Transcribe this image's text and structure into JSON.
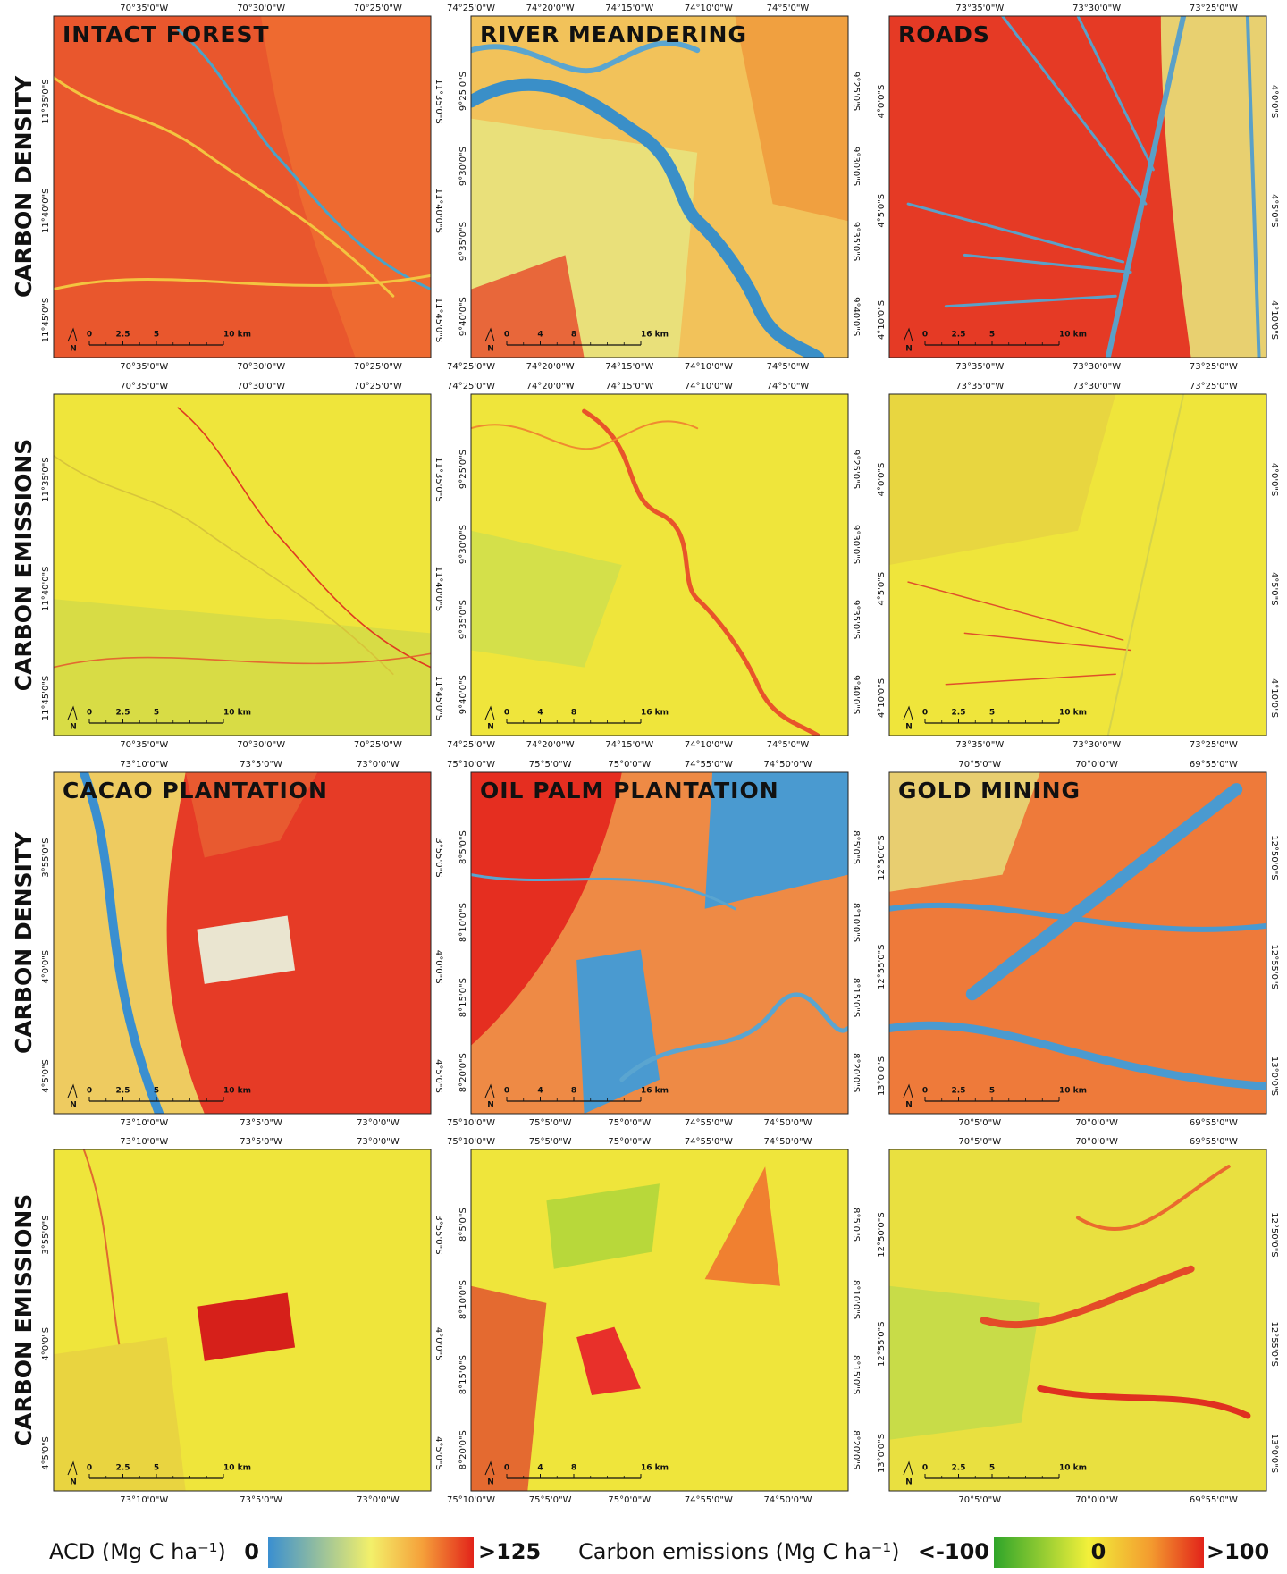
{
  "rows": [
    {
      "label": "CARBON DENSITY",
      "panels": [
        {
          "title": "INTACT FOREST",
          "x_labels": [
            "70°35'0\"W",
            "70°30'0\"W",
            "70°25'0\"W"
          ],
          "y_labels": [
            "11°35'0\"S",
            "11°40'0\"S",
            "11°45'0\"S"
          ],
          "scale": [
            "0",
            "2.5",
            "5",
            "10 km"
          ],
          "north": "N"
        },
        {
          "title": "RIVER MEANDERING",
          "x_labels": [
            "74°25'0\"W",
            "74°20'0\"W",
            "74°15'0\"W",
            "74°10'0\"W",
            "74°5'0\"W"
          ],
          "y_labels": [
            "9°25'0\"S",
            "9°30'0\"S",
            "9°35'0\"S",
            "9°40'0\"S"
          ],
          "scale": [
            "0",
            "4",
            "8",
            "16 km"
          ],
          "north": "N"
        },
        {
          "title": "ROADS",
          "x_labels": [
            "73°35'0\"W",
            "73°30'0\"W",
            "73°25'0\"W"
          ],
          "y_labels": [
            "4°0'0\"S",
            "4°5'0\"S",
            "4°10'0\"S"
          ],
          "scale": [
            "0",
            "2.5",
            "5",
            "10 km"
          ],
          "north": "N"
        }
      ]
    },
    {
      "label": "CARBON EMISSIONS",
      "panels": [
        {
          "x_labels": [
            "70°35'0\"W",
            "70°30'0\"W",
            "70°25'0\"W"
          ],
          "y_labels": [
            "11°35'0\"S",
            "11°40'0\"S",
            "11°45'0\"S"
          ],
          "scale": [
            "0",
            "2.5",
            "5",
            "10 km"
          ],
          "north": "N"
        },
        {
          "x_labels": [
            "74°25'0\"W",
            "74°20'0\"W",
            "74°15'0\"W",
            "74°10'0\"W",
            "74°5'0\"W"
          ],
          "y_labels": [
            "9°25'0\"S",
            "9°30'0\"S",
            "9°35'0\"S",
            "9°40'0\"S"
          ],
          "scale": [
            "0",
            "4",
            "8",
            "16 km"
          ],
          "north": "N"
        },
        {
          "x_labels": [
            "73°35'0\"W",
            "73°30'0\"W",
            "73°25'0\"W"
          ],
          "y_labels": [
            "4°0'0\"S",
            "4°5'0\"S",
            "4°10'0\"S"
          ],
          "scale": [
            "0",
            "2.5",
            "5",
            "10 km"
          ],
          "north": "N"
        }
      ]
    },
    {
      "label": "CARBON DENSITY",
      "panels": [
        {
          "title": "CACAO PLANTATION",
          "x_labels": [
            "73°10'0\"W",
            "73°5'0\"W",
            "73°0'0\"W"
          ],
          "y_labels": [
            "3°55'0\"S",
            "4°0'0\"S",
            "4°5'0\"S"
          ],
          "scale": [
            "0",
            "2.5",
            "5",
            "10 km"
          ],
          "north": "N"
        },
        {
          "title": "OIL PALM PLANTATION",
          "x_labels": [
            "75°10'0\"W",
            "75°5'0\"W",
            "75°0'0\"W",
            "74°55'0\"W",
            "74°50'0\"W"
          ],
          "y_labels": [
            "8°5'0\"S",
            "8°10'0\"S",
            "8°15'0\"S",
            "8°20'0\"S"
          ],
          "scale": [
            "0",
            "4",
            "8",
            "16 km"
          ],
          "north": "N"
        },
        {
          "title": "GOLD MINING",
          "x_labels": [
            "70°5'0\"W",
            "70°0'0\"W",
            "69°55'0\"W"
          ],
          "y_labels": [
            "12°50'0\"S",
            "12°55'0\"S",
            "13°0'0\"S"
          ],
          "scale": [
            "0",
            "2.5",
            "5",
            "10 km"
          ],
          "north": "N"
        }
      ]
    },
    {
      "label": "CARBON EMISSIONS",
      "panels": [
        {
          "x_labels": [
            "73°10'0\"W",
            "73°5'0\"W",
            "73°0'0\"W"
          ],
          "y_labels": [
            "3°55'0\"S",
            "4°0'0\"S",
            "4°5'0\"S"
          ],
          "scale": [
            "0",
            "2.5",
            "5",
            "10 km"
          ],
          "north": "N"
        },
        {
          "x_labels": [
            "75°10'0\"W",
            "75°5'0\"W",
            "75°0'0\"W",
            "74°55'0\"W",
            "74°50'0\"W"
          ],
          "y_labels": [
            "8°5'0\"S",
            "8°10'0\"S",
            "8°15'0\"S",
            "8°20'0\"S"
          ],
          "scale": [
            "0",
            "4",
            "8",
            "16 km"
          ],
          "north": "N"
        },
        {
          "x_labels": [
            "70°5'0\"W",
            "70°0'0\"W",
            "69°55'0\"W"
          ],
          "y_labels": [
            "12°50'0\"S",
            "12°55'0\"S",
            "13°0'0\"S"
          ],
          "scale": [
            "0",
            "2.5",
            "5",
            "10 km"
          ],
          "north": "N"
        }
      ]
    }
  ],
  "legend": {
    "acd": {
      "label": "ACD (Mg C ha⁻¹)",
      "min": "0",
      "max": ">125"
    },
    "emissions": {
      "label": "Carbon emissions (Mg C ha⁻¹)",
      "min": "<-100",
      "mid": "0",
      "max": ">100"
    }
  }
}
